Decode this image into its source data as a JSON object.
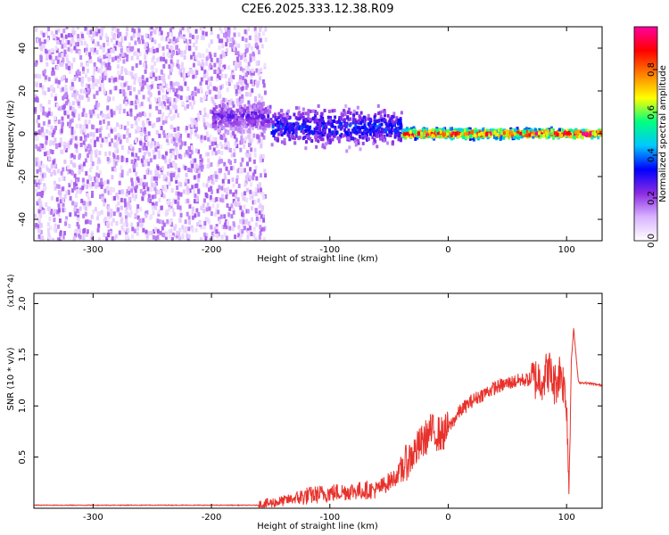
{
  "title": "C2E6.2025.333.12.38.R09",
  "colors": {
    "snr_line": "#e8312b",
    "colormap": [
      "#ffffff",
      "#d9b3ff",
      "#8a2be2",
      "#0000ff",
      "#00c8ff",
      "#00ff80",
      "#ffff00",
      "#ff8000",
      "#ff0000",
      "#ff00a0"
    ]
  },
  "chart_data": [
    {
      "type": "heatmap",
      "name": "spectrogram",
      "xlabel": "Height of straight line (km)",
      "ylabel": "Frequency (Hz)",
      "xlim": [
        -350,
        130
      ],
      "ylim": [
        -50,
        50
      ],
      "xticks": [
        -300,
        -200,
        -100,
        0,
        100
      ],
      "yticks": [
        -40,
        -20,
        0,
        20,
        40
      ],
      "colorbar": {
        "label": "Normalized spectral amplitude",
        "range": [
          0.0,
          1.0
        ],
        "ticks": [
          0.0,
          0.2,
          0.4,
          0.6,
          0.8
        ]
      },
      "regions": [
        {
          "x_range": [
            -350,
            -155
          ],
          "freq_range": [
            -50,
            50
          ],
          "amplitude": 0.12,
          "description": "broadband noise"
        },
        {
          "x_range": [
            -200,
            -150
          ],
          "freq_center": 8,
          "freq_halfwidth": 10,
          "amplitude": 0.25
        },
        {
          "x_range": [
            -150,
            -40
          ],
          "freq_center": 3,
          "freq_halfwidth": 12,
          "amplitude": 0.35
        },
        {
          "x_range": [
            -40,
            130
          ],
          "freq_center": 0,
          "freq_halfwidth": 3,
          "amplitude": 0.9
        }
      ]
    },
    {
      "type": "line",
      "name": "snr",
      "xlabel": "Height of straight line (km)",
      "ylabel": "SNR (10 * v/v)",
      "y_multiplier": "(x10^4)",
      "xlim": [
        -350,
        130
      ],
      "ylim": [
        0.0,
        2.1
      ],
      "xticks": [
        -300,
        -200,
        -100,
        0,
        100
      ],
      "yticks": [
        0.5,
        1.0,
        1.5,
        2.0
      ],
      "series": [
        {
          "x": [
            -350,
            -300,
            -250,
            -200,
            -160,
            -140,
            -120,
            -100,
            -80,
            -60,
            -45,
            -35,
            -25,
            -15,
            -5,
            0,
            10,
            20,
            30,
            40,
            50,
            60,
            70,
            80,
            85,
            90,
            95,
            100,
            102,
            104,
            106,
            110,
            120,
            130
          ],
          "y": [
            0.03,
            0.03,
            0.03,
            0.03,
            0.03,
            0.07,
            0.12,
            0.15,
            0.17,
            0.18,
            0.3,
            0.45,
            0.6,
            0.75,
            0.72,
            0.78,
            0.95,
            1.05,
            1.12,
            1.18,
            1.22,
            1.25,
            1.26,
            1.27,
            1.35,
            1.2,
            1.35,
            1.05,
            0.2,
            1.45,
            1.75,
            1.23,
            1.22,
            1.2
          ]
        }
      ]
    }
  ]
}
